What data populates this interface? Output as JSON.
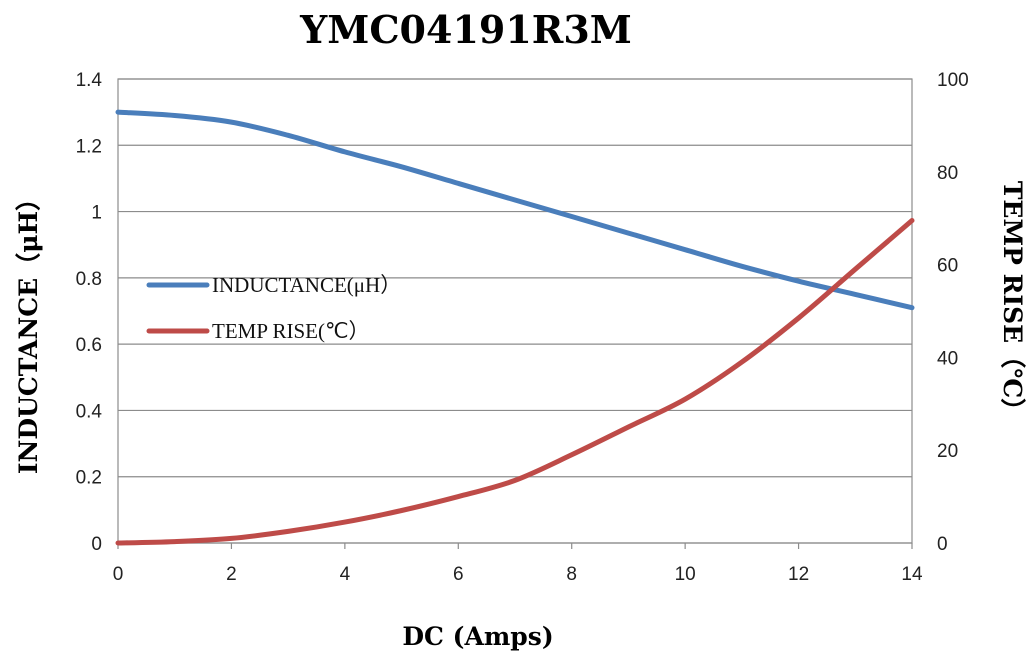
{
  "chart_data": {
    "type": "line",
    "title": "YMC04191R3M",
    "xlabel": "DC (Amps)",
    "ylabel": "INDUCTANCE（μH）",
    "y2label": "TEMP RISE（℃）",
    "xlim": [
      0,
      14
    ],
    "ylim": [
      0,
      1.4
    ],
    "y2lim": [
      0,
      100
    ],
    "x_ticks": [
      "0",
      "2",
      "4",
      "6",
      "8",
      "10",
      "12",
      "14"
    ],
    "y_ticks": [
      "0",
      "0.2",
      "0.4",
      "0.6",
      "0.8",
      "1",
      "1.2",
      "1.4"
    ],
    "y2_ticks": [
      "0",
      "20",
      "40",
      "60",
      "80",
      "100"
    ],
    "grid": true,
    "legend_position": "left-middle",
    "series": [
      {
        "name": "INDUCTANCE(μH）",
        "axis": "left",
        "color": "#4a7ebb",
        "x": [
          0,
          1,
          2,
          3,
          4,
          5,
          6,
          7,
          8,
          9,
          10,
          11,
          12,
          13,
          14
        ],
        "y": [
          1.3,
          1.29,
          1.27,
          1.23,
          1.18,
          1.135,
          1.085,
          1.035,
          0.985,
          0.935,
          0.885,
          0.835,
          0.79,
          0.75,
          0.71
        ]
      },
      {
        "name": "TEMP RISE(℃）",
        "axis": "right",
        "color": "#be4b48",
        "x": [
          0,
          1,
          2,
          3,
          4,
          5,
          6,
          7,
          8,
          9,
          10,
          11,
          12,
          13,
          14
        ],
        "y": [
          0,
          0.3,
          1,
          2.5,
          4.5,
          7,
          10,
          13.5,
          19,
          25,
          31,
          39,
          48.5,
          59,
          69.5
        ]
      }
    ]
  }
}
